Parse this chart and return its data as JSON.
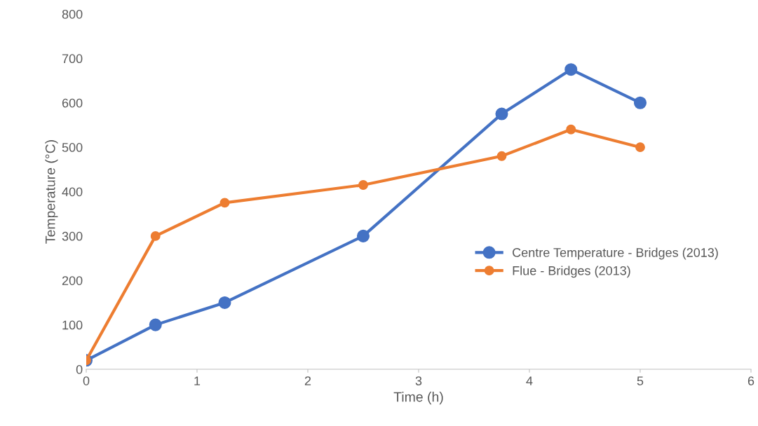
{
  "chart_data": {
    "type": "line",
    "xlabel": "Time (h)",
    "ylabel": "Temperature (°C)",
    "xlim": [
      0,
      6
    ],
    "xticks": [
      0,
      1,
      2,
      3,
      4,
      5,
      6
    ],
    "ylim": [
      0,
      800
    ],
    "yticks": [
      0,
      100,
      200,
      300,
      400,
      500,
      600,
      700,
      800
    ],
    "grid": false,
    "legend": "right",
    "marker": "circle",
    "line_style": "solid",
    "series": [
      {
        "name": "Centre Temperature - Bridges (2013)",
        "color": "#4472c4",
        "x": [
          0,
          0.625,
          1.25,
          2.5,
          3.75,
          4.375,
          5
        ],
        "values": [
          20,
          100,
          150,
          300,
          575,
          675,
          600
        ]
      },
      {
        "name": "Flue - Bridges (2013)",
        "color": "#ed7d31",
        "x": [
          0,
          0.625,
          1.25,
          2.5,
          3.75,
          4.375,
          5
        ],
        "values": [
          20,
          300,
          375,
          415,
          480,
          540,
          500
        ]
      }
    ]
  }
}
